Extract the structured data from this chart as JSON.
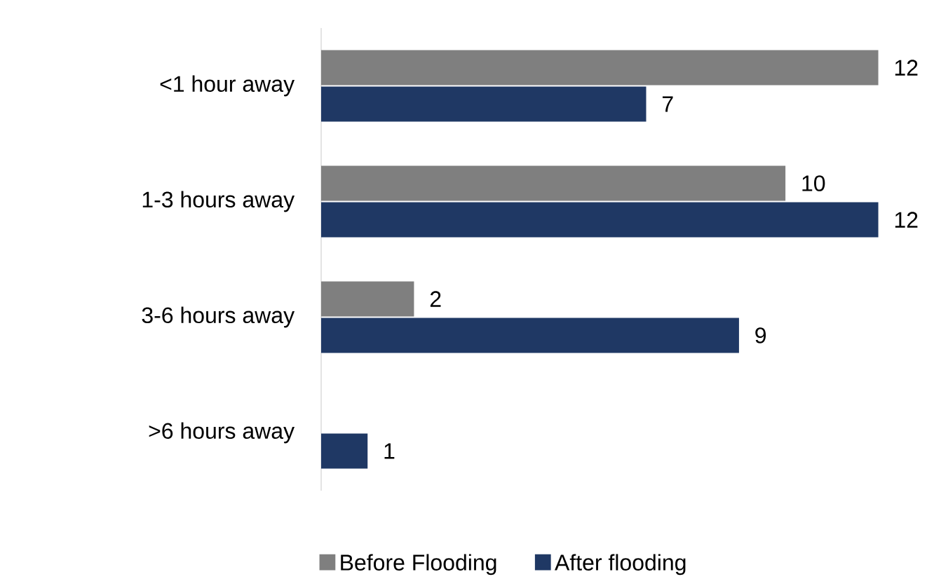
{
  "chart_data": {
    "type": "bar",
    "orientation": "horizontal",
    "categories": [
      "<1 hour away",
      "1-3 hours away",
      "3-6 hours away",
      ">6 hours away"
    ],
    "series": [
      {
        "name": "Before Flooding",
        "color": "#7f7f7f",
        "values": [
          12,
          10,
          2,
          null
        ]
      },
      {
        "name": "After flooding",
        "color": "#1f3864",
        "values": [
          7,
          12,
          9,
          1
        ]
      }
    ],
    "data_labels": true,
    "legend": "bottom"
  }
}
